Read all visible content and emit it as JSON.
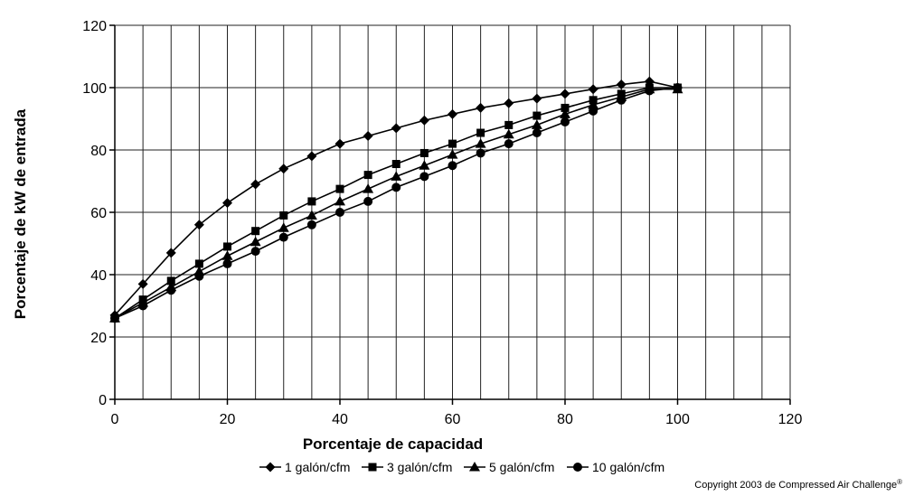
{
  "chart_data": {
    "type": "line",
    "xlabel": "Porcentaje de capacidad",
    "ylabel": "Porcentaje de kW de entrada",
    "xlim": [
      0,
      120
    ],
    "ylim": [
      0,
      120
    ],
    "x_ticks": [
      0,
      20,
      40,
      60,
      80,
      100,
      120
    ],
    "y_ticks": [
      0,
      20,
      40,
      60,
      80,
      100,
      120
    ],
    "x_grid_step": 5,
    "y_grid_step": 20,
    "grid": true,
    "legend_position": "bottom",
    "line_color": "#000000",
    "series": [
      {
        "name": "1 galón/cfm",
        "marker": "diamond",
        "x": [
          0,
          5,
          10,
          15,
          20,
          25,
          30,
          35,
          40,
          45,
          50,
          55,
          60,
          65,
          70,
          75,
          80,
          85,
          90,
          95,
          100
        ],
        "y": [
          27,
          37,
          47,
          56,
          63,
          69,
          74,
          78,
          82,
          84.5,
          87,
          89.5,
          91.5,
          93.5,
          95,
          96.5,
          98,
          99.5,
          101,
          102,
          100
        ]
      },
      {
        "name": "3 galón/cfm",
        "marker": "square",
        "x": [
          0,
          5,
          10,
          15,
          20,
          25,
          30,
          35,
          40,
          45,
          50,
          55,
          60,
          65,
          70,
          75,
          80,
          85,
          90,
          95,
          100
        ],
        "y": [
          26,
          32,
          38,
          43.5,
          49,
          54,
          59,
          63.5,
          67.5,
          72,
          75.5,
          79,
          82,
          85.5,
          88,
          91,
          93.5,
          96,
          98,
          100,
          100
        ]
      },
      {
        "name": "5 galón/cfm",
        "marker": "triangle",
        "x": [
          0,
          5,
          10,
          15,
          20,
          25,
          30,
          35,
          40,
          45,
          50,
          55,
          60,
          65,
          70,
          75,
          80,
          85,
          90,
          95,
          100
        ],
        "y": [
          26,
          31,
          36,
          41,
          46,
          50.5,
          55,
          59,
          63.5,
          67.5,
          71.5,
          75,
          78.5,
          82,
          85,
          88,
          91.5,
          94.5,
          97,
          99.5,
          99.5
        ]
      },
      {
        "name": "10 galón/cfm",
        "marker": "circle",
        "x": [
          0,
          5,
          10,
          15,
          20,
          25,
          30,
          35,
          40,
          45,
          50,
          55,
          60,
          65,
          70,
          75,
          80,
          85,
          90,
          95,
          100
        ],
        "y": [
          26,
          30,
          35,
          39.5,
          43.5,
          47.5,
          52,
          56,
          60,
          63.5,
          68,
          71.5,
          75,
          79,
          82,
          85.5,
          89,
          92.5,
          96,
          99,
          100
        ]
      }
    ]
  },
  "copyright": {
    "text": "Copyright 2003 de Compressed Air Challenge",
    "mark": "®"
  }
}
